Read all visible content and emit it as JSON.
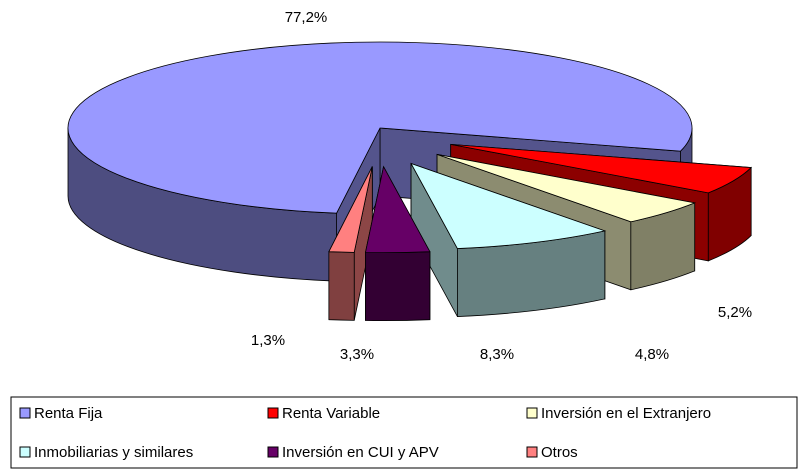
{
  "chart_data": {
    "type": "pie",
    "categories": [
      "Renta Fija",
      "Renta Variable",
      "Inversión en el Extranjero",
      "Inmobiliarias y similares",
      "Inversión en CUI y APV",
      "Otros"
    ],
    "values": [
      77.2,
      5.2,
      4.8,
      8.3,
      3.3,
      1.3
    ],
    "value_labels": [
      "77,2%",
      "5,2%",
      "4,8%",
      "8,3%",
      "3,3%",
      "1,3%"
    ],
    "colors": [
      "#9999ff",
      "#ff0000",
      "#ffffcc",
      "#ccffff",
      "#660066",
      "#ff8080"
    ],
    "legend": "bottom"
  }
}
